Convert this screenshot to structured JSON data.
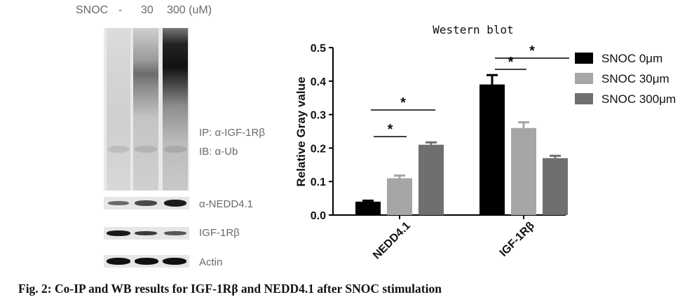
{
  "blot": {
    "header": {
      "treatment": "SNOC",
      "lane1": "-",
      "lane2": "30",
      "lane3": "300 (uM)"
    },
    "ip_label": "IP: α-IGF-1Rβ",
    "ib_label": "IB: α-Ub",
    "nedd_label": "α-NEDD4.1",
    "igf_label": "IGF-1Rβ",
    "actin_label": "Actin"
  },
  "chart_data": {
    "type": "bar",
    "title": "Western blot",
    "xlabel": "",
    "ylabel": "Relative Gray value",
    "ylim": [
      0,
      0.5
    ],
    "yticks": [
      "0.0",
      "0.1",
      "0.2",
      "0.3",
      "0.4",
      "0.5"
    ],
    "categories": [
      "NEDD4.1",
      "IGF-1Rβ"
    ],
    "series": [
      {
        "name": "SNOC 0μm",
        "color": "#000000",
        "values": [
          0.04,
          0.39
        ],
        "errors": [
          0.003,
          0.028
        ]
      },
      {
        "name": "SNOC 30μm",
        "color": "#a6a6a6",
        "values": [
          0.11,
          0.26
        ],
        "errors": [
          0.008,
          0.017
        ]
      },
      {
        "name": "SNOC 300μm",
        "color": "#6f6f6f",
        "values": [
          0.21,
          0.17
        ],
        "errors": [
          0.007,
          0.007
        ]
      }
    ],
    "significance_marker": "*",
    "legend_position": "right",
    "grid": false
  },
  "caption": "Fig. 2: Co-IP and WB results for IGF-1Rβ and NEDD4.1 after SNOC stimulation"
}
